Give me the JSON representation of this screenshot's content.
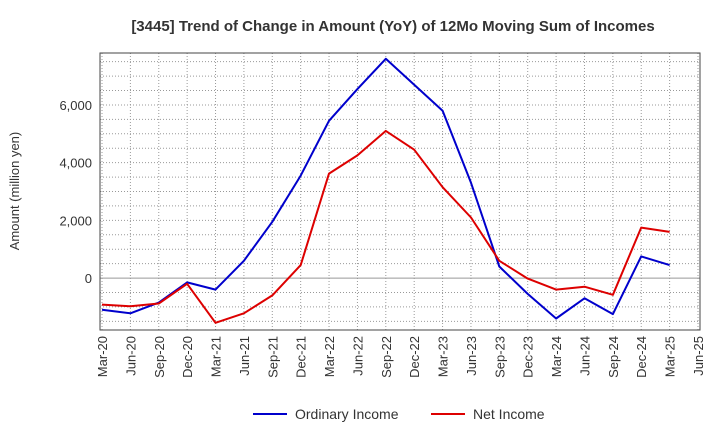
{
  "chart_data": {
    "type": "line",
    "title": "[3445]  Trend of Change in Amount (YoY) of 12Mo Moving Sum of Incomes",
    "xlabel": "",
    "ylabel": "Amount (million yen)",
    "ylim": [
      -1800,
      7800
    ],
    "yticks": [
      0,
      2000,
      4000,
      6000
    ],
    "ytick_labels": [
      "0",
      "2,000",
      "4,000",
      "6,000"
    ],
    "categories": [
      "Mar-20",
      "Jun-20",
      "Sep-20",
      "Dec-20",
      "Mar-21",
      "Jun-21",
      "Sep-21",
      "Dec-21",
      "Mar-22",
      "Jun-22",
      "Sep-22",
      "Dec-22",
      "Mar-23",
      "Jun-23",
      "Sep-23",
      "Dec-23",
      "Mar-24",
      "Jun-24",
      "Sep-24",
      "Dec-24",
      "Mar-25",
      "Jun-25"
    ],
    "grid": true,
    "legend_position": "bottom-center",
    "series": [
      {
        "name": "Ordinary Income",
        "color": "#0000cc",
        "values": [
          -1100,
          -1220,
          -850,
          -150,
          -400,
          600,
          1950,
          3550,
          5450,
          6550,
          7600,
          6700,
          5800,
          3300,
          400,
          -550,
          -1400,
          -700,
          -1250,
          750,
          450,
          null
        ]
      },
      {
        "name": "Net Income",
        "color": "#dd0000",
        "values": [
          -920,
          -980,
          -880,
          -200,
          -1550,
          -1220,
          -600,
          450,
          3620,
          4250,
          5100,
          4450,
          3150,
          2100,
          600,
          -20,
          -400,
          -300,
          -580,
          1750,
          1600,
          null
        ]
      }
    ]
  }
}
